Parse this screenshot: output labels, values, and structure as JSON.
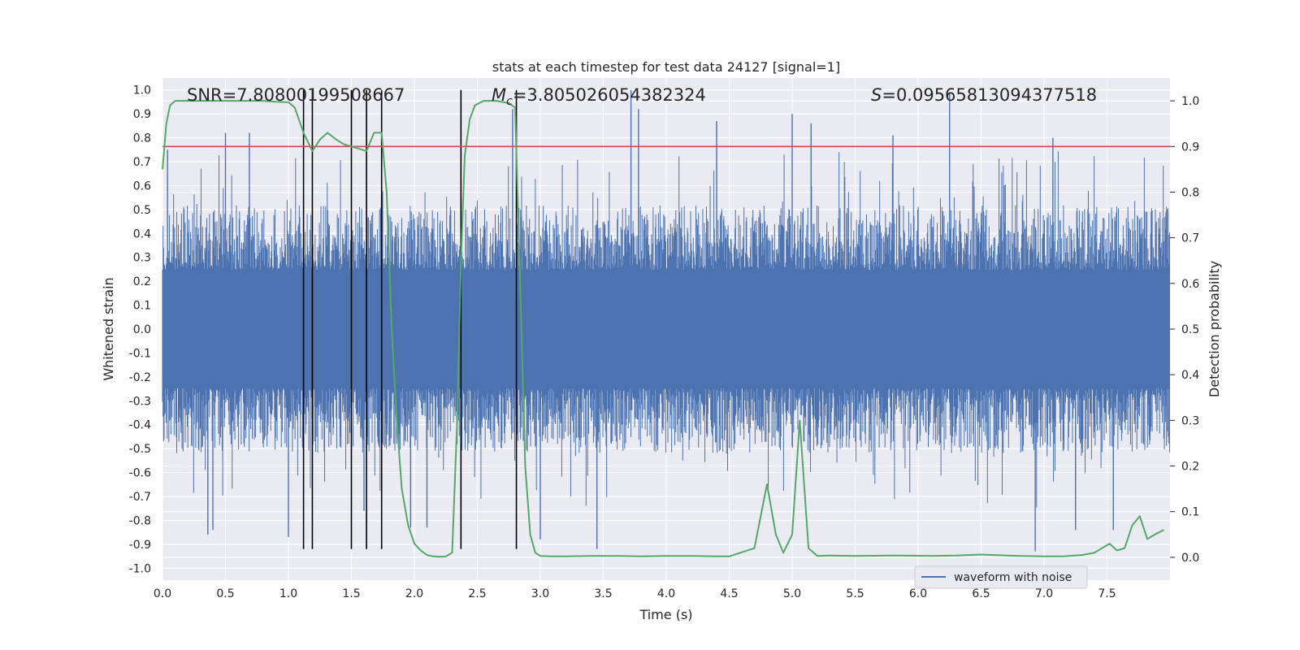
{
  "chart_data": {
    "type": "line",
    "title": "stats at each timestep for test data 24127 [signal=1]",
    "xlabel": "Time (s)",
    "ylabel_left": "Whitened strain",
    "ylabel_right": "Detection probability",
    "xlim": [
      0.0,
      8.0
    ],
    "ylim_left": [
      -1.05,
      1.05
    ],
    "ylim_right": [
      -0.05,
      1.05
    ],
    "xticks": [
      "0.0",
      "0.5",
      "1.0",
      "1.5",
      "2.0",
      "2.5",
      "3.0",
      "3.5",
      "4.0",
      "4.5",
      "5.0",
      "5.5",
      "6.0",
      "6.5",
      "7.0",
      "7.5"
    ],
    "yticks_left": [
      "-1.0",
      "-0.9",
      "-0.8",
      "-0.7",
      "-0.6",
      "-0.5",
      "-0.4",
      "-0.3",
      "-0.2",
      "-0.1",
      "0.0",
      "0.1",
      "0.2",
      "0.3",
      "0.4",
      "0.5",
      "0.6",
      "0.7",
      "0.8",
      "0.9",
      "1.0"
    ],
    "yticks_right": [
      "0.0",
      "0.1",
      "0.2",
      "0.3",
      "0.4",
      "0.5",
      "0.6",
      "0.7",
      "0.8",
      "0.9",
      "1.0"
    ],
    "grid": true,
    "legend": {
      "position": "lower-right",
      "entries": [
        "waveform with noise"
      ]
    },
    "annotations": {
      "snr_prefix": "SNR=",
      "snr_value": "7.80800199508667",
      "mc_symbol": "M",
      "mc_subscript": "c",
      "mc_value": "=3.805026054382324",
      "s_symbol": "S",
      "s_value": "=0.09565813094377518"
    },
    "threshold": {
      "value": 0.9,
      "axis": "right",
      "color": "#c44e52"
    },
    "vertical_markers": {
      "x": [
        1.12,
        1.19,
        1.5,
        1.62,
        1.74,
        2.37,
        2.81
      ],
      "ymin_left": -0.92,
      "ymax_left": 1.0,
      "color": "#000000"
    },
    "series": [
      {
        "name": "waveform with noise",
        "axis": "left",
        "color": "#4c72b0",
        "description_kind": "noisy strain",
        "envelope_typical": 0.45,
        "spikes": [
          {
            "x": 0.04,
            "y": 0.75
          },
          {
            "x": 0.36,
            "y": -0.86
          },
          {
            "x": 0.4,
            "y": -0.84
          },
          {
            "x": 0.5,
            "y": 0.82
          },
          {
            "x": 0.69,
            "y": 0.82
          },
          {
            "x": 1.0,
            "y": -0.87
          },
          {
            "x": 1.6,
            "y": -0.76
          },
          {
            "x": 1.97,
            "y": -0.83
          },
          {
            "x": 2.1,
            "y": -0.83
          },
          {
            "x": 2.78,
            "y": 0.92
          },
          {
            "x": 3.0,
            "y": -0.88
          },
          {
            "x": 3.45,
            "y": -0.92
          },
          {
            "x": 3.72,
            "y": 1.0
          },
          {
            "x": 3.78,
            "y": 0.92
          },
          {
            "x": 4.4,
            "y": 0.87
          },
          {
            "x": 5.0,
            "y": 0.9
          },
          {
            "x": 5.15,
            "y": 0.86
          },
          {
            "x": 5.8,
            "y": 0.81
          },
          {
            "x": 6.25,
            "y": 0.99
          },
          {
            "x": 6.93,
            "y": -0.93
          },
          {
            "x": 7.07,
            "y": 0.8
          },
          {
            "x": 7.25,
            "y": -0.84
          },
          {
            "x": 7.55,
            "y": -0.84
          }
        ]
      },
      {
        "name": "",
        "axis": "right",
        "color": "#55a868",
        "x": [
          0.0,
          0.03,
          0.06,
          0.1,
          0.2,
          0.3,
          0.4,
          0.5,
          0.6,
          0.7,
          0.8,
          0.9,
          1.0,
          1.05,
          1.12,
          1.19,
          1.25,
          1.31,
          1.38,
          1.44,
          1.5,
          1.56,
          1.62,
          1.68,
          1.74,
          1.78,
          1.82,
          1.86,
          1.9,
          1.95,
          2.0,
          2.05,
          2.1,
          2.15,
          2.2,
          2.25,
          2.3,
          2.34,
          2.37,
          2.4,
          2.44,
          2.48,
          2.55,
          2.65,
          2.75,
          2.8,
          2.84,
          2.88,
          2.92,
          2.96,
          3.0,
          3.08,
          3.2,
          3.4,
          3.6,
          3.8,
          4.0,
          4.2,
          4.4,
          4.5,
          4.7,
          4.8,
          4.87,
          4.93,
          5.0,
          5.06,
          5.13,
          5.2,
          5.3,
          5.5,
          5.8,
          6.1,
          6.3,
          6.5,
          6.6,
          6.8,
          7.0,
          7.15,
          7.3,
          7.4,
          7.46,
          7.52,
          7.58,
          7.64,
          7.7,
          7.76,
          7.82,
          7.88,
          7.95
        ],
        "y": [
          0.85,
          0.95,
          0.99,
          1.0,
          1.0,
          1.0,
          1.0,
          1.0,
          1.0,
          1.0,
          1.0,
          0.998,
          0.997,
          0.985,
          0.93,
          0.89,
          0.915,
          0.93,
          0.915,
          0.905,
          0.9,
          0.895,
          0.89,
          0.93,
          0.93,
          0.8,
          0.5,
          0.3,
          0.15,
          0.07,
          0.03,
          0.015,
          0.005,
          0.002,
          0.001,
          0.002,
          0.01,
          0.3,
          0.65,
          0.88,
          0.96,
          0.99,
          1.0,
          1.0,
          0.995,
          0.985,
          0.6,
          0.2,
          0.05,
          0.01,
          0.003,
          0.002,
          0.002,
          0.003,
          0.003,
          0.002,
          0.003,
          0.003,
          0.002,
          0.002,
          0.02,
          0.16,
          0.05,
          0.01,
          0.05,
          0.3,
          0.02,
          0.003,
          0.004,
          0.003,
          0.004,
          0.003,
          0.004,
          0.006,
          0.005,
          0.003,
          0.002,
          0.002,
          0.005,
          0.01,
          0.02,
          0.03,
          0.015,
          0.02,
          0.07,
          0.09,
          0.04,
          0.05,
          0.06
        ]
      }
    ]
  }
}
